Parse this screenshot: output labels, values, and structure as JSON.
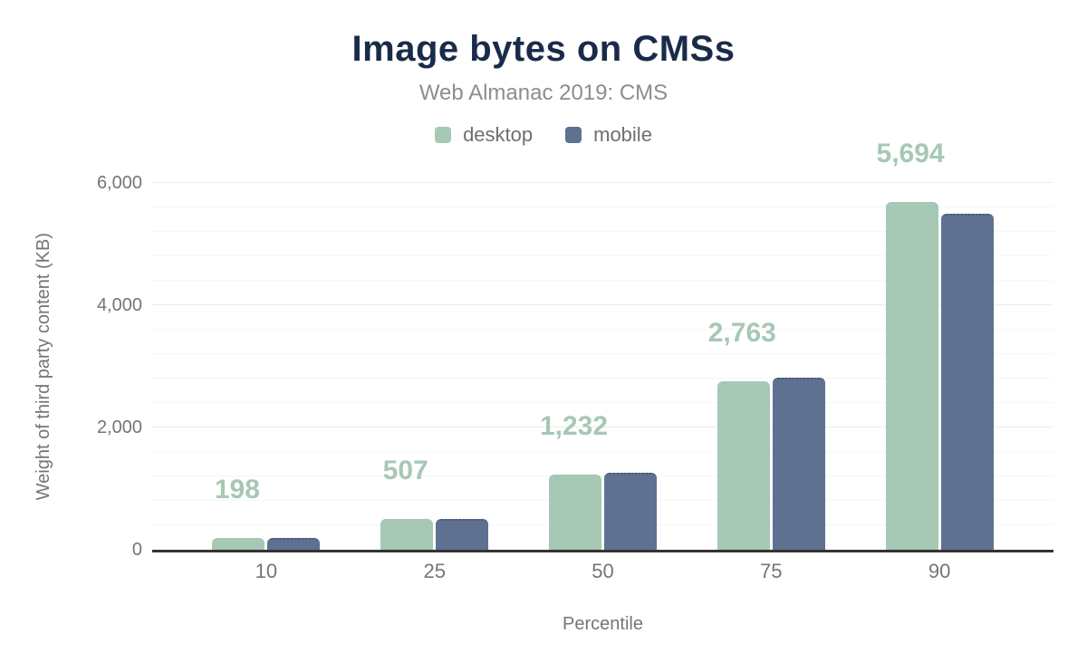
{
  "chart_data": {
    "type": "bar",
    "title": "Image bytes on CMSs",
    "subtitle": "Web Almanac 2019: CMS",
    "xlabel": "Percentile",
    "ylabel": "Weight of third party content (KB)",
    "categories": [
      "10",
      "25",
      "50",
      "75",
      "90"
    ],
    "series": [
      {
        "name": "desktop",
        "color": "#a6c8b4",
        "values": [
          198,
          507,
          1232,
          2763,
          5694
        ]
      },
      {
        "name": "mobile",
        "color": "#5e7190",
        "values": [
          190,
          500,
          1260,
          2820,
          5500
        ]
      }
    ],
    "bar_labels": {
      "series": "desktop",
      "values": [
        "198",
        "507",
        "1,232",
        "2,763",
        "5,694"
      ],
      "color": "#a6c8b4"
    },
    "y_axis": {
      "max": 6000,
      "ticks": [
        0,
        2000,
        4000,
        6000
      ],
      "tick_labels": [
        "0",
        "2,000",
        "4,000",
        "6,000"
      ],
      "minor_step": 400,
      "major_step": 2000,
      "grid": true
    },
    "legend_position": "top",
    "colors": {
      "title": "#1a2b49",
      "subtitle": "#8d8d8d",
      "legend_text": "#6e6e6e",
      "axis_text": "#757575",
      "axis_line": "#333333",
      "major_grid": "#ececec",
      "minor_grid": "#f6f6f6"
    }
  }
}
